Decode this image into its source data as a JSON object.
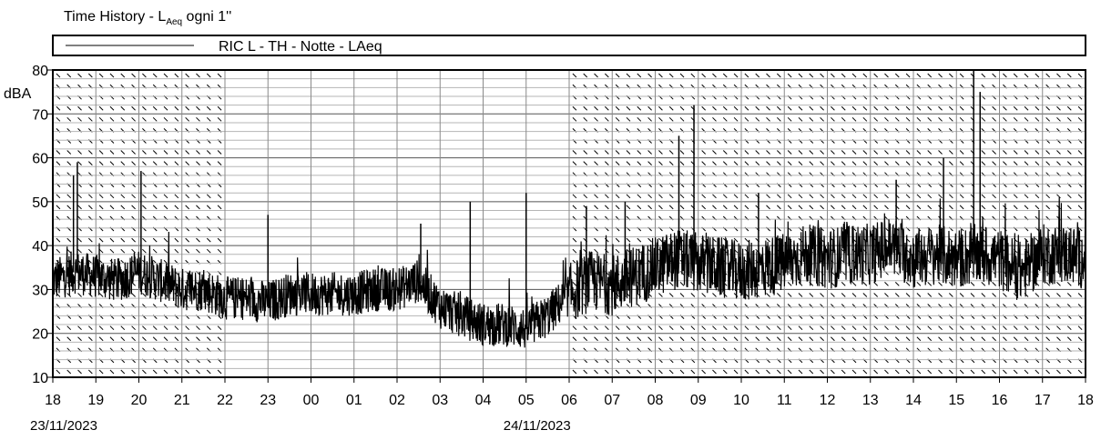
{
  "title": {
    "prefix": "Time History  -  L",
    "subscript": "Aeq",
    "suffix": " ogni 1''"
  },
  "chart_data": {
    "type": "line",
    "title": "Time History  -  LAeq ogni 1''",
    "ylabel": "dBA",
    "xlabel": "",
    "ylim": [
      10,
      80
    ],
    "yticks": [
      10,
      20,
      30,
      40,
      50,
      60,
      70,
      80
    ],
    "xticks": [
      "18",
      "19",
      "20",
      "21",
      "22",
      "23",
      "00",
      "01",
      "02",
      "03",
      "04",
      "05",
      "06",
      "07",
      "08",
      "09",
      "10",
      "11",
      "12",
      "13",
      "14",
      "15",
      "16",
      "17",
      "18"
    ],
    "dates": [
      {
        "label": "23/11/2023",
        "hour_index": 0
      },
      {
        "label": "24/11/2023",
        "hour_index": 11
      }
    ],
    "grid": true,
    "legend_position": "top",
    "shaded_hour_ranges": [
      [
        0,
        4
      ],
      [
        12,
        24
      ]
    ],
    "series": [
      {
        "name": "RIC L - TH - Notte - LAeq",
        "color": "#000000",
        "x_hours": [
          0,
          0.5,
          1,
          1.5,
          2,
          2.5,
          3,
          3.5,
          4,
          4.5,
          5,
          5.5,
          6,
          6.5,
          7,
          7.5,
          8,
          8.5,
          9,
          9.5,
          10,
          10.5,
          11,
          11.5,
          12,
          12.5,
          13,
          13.5,
          14,
          14.5,
          15,
          15.5,
          16,
          16.5,
          17,
          17.5,
          18,
          18.5,
          19,
          19.5,
          20,
          20.5,
          21,
          21.5,
          22,
          22.5,
          23,
          23.5,
          24
        ],
        "base_dBA": [
          32,
          34,
          33,
          32,
          34,
          32,
          30,
          30,
          28,
          28,
          27,
          29,
          29,
          29,
          29,
          30,
          30,
          32,
          26,
          24,
          22,
          22,
          21,
          24,
          29,
          32,
          31,
          33,
          35,
          37,
          36,
          35,
          34,
          35,
          36,
          38,
          37,
          38,
          38,
          40,
          37,
          38,
          37,
          38,
          37,
          34,
          38,
          38,
          37
        ],
        "spikes": [
          {
            "hour": 0.48,
            "dBA": 56
          },
          {
            "hour": 0.57,
            "dBA": 59
          },
          {
            "hour": 2.05,
            "dBA": 57
          },
          {
            "hour": 5.0,
            "dBA": 47
          },
          {
            "hour": 8.55,
            "dBA": 45
          },
          {
            "hour": 9.7,
            "dBA": 50
          },
          {
            "hour": 11.0,
            "dBA": 52
          },
          {
            "hour": 12.4,
            "dBA": 49
          },
          {
            "hour": 13.3,
            "dBA": 50
          },
          {
            "hour": 14.55,
            "dBA": 65
          },
          {
            "hour": 14.9,
            "dBA": 72
          },
          {
            "hour": 16.4,
            "dBA": 52
          },
          {
            "hour": 19.6,
            "dBA": 55
          },
          {
            "hour": 20.7,
            "dBA": 60
          },
          {
            "hour": 21.4,
            "dBA": 80
          },
          {
            "hour": 21.55,
            "dBA": 75
          }
        ]
      }
    ]
  }
}
